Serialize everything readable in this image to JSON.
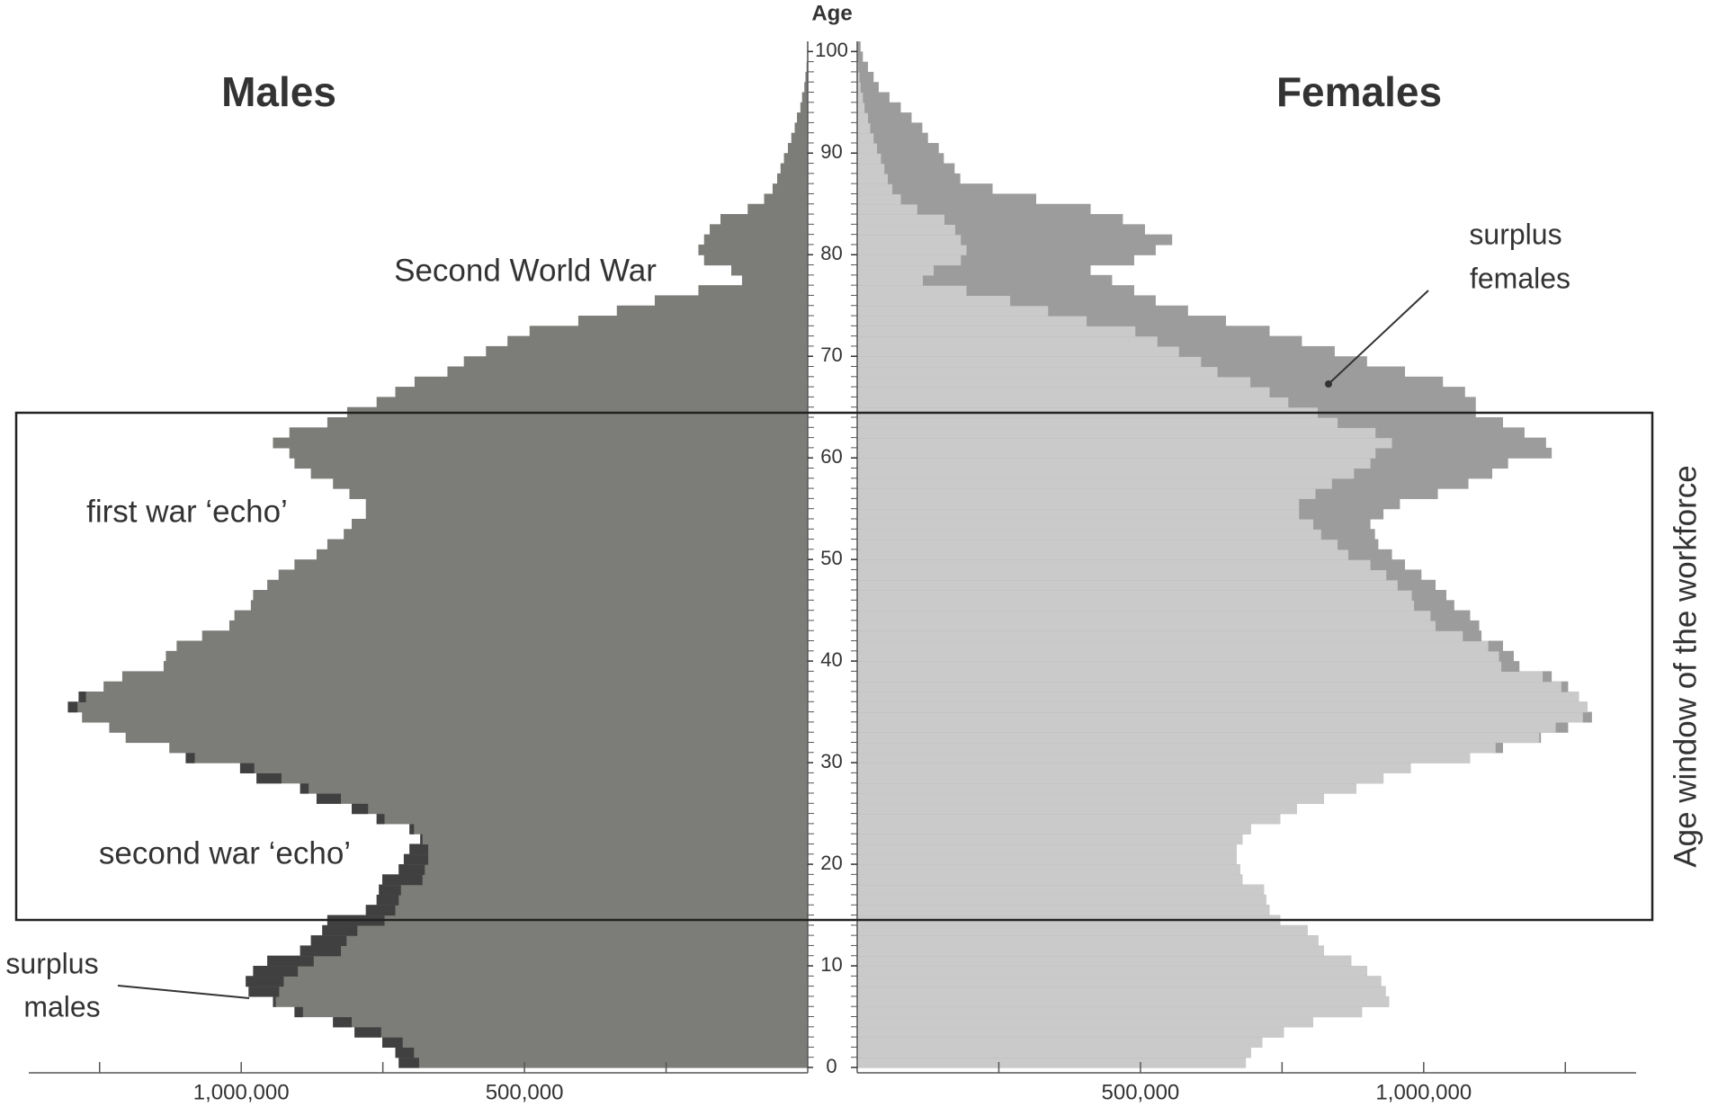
{
  "chart_data": {
    "type": "pyramid",
    "y_axis_title": "Age",
    "ages": [
      0,
      1,
      2,
      3,
      4,
      5,
      6,
      7,
      8,
      9,
      10,
      11,
      12,
      13,
      14,
      15,
      16,
      17,
      18,
      19,
      20,
      21,
      22,
      23,
      24,
      25,
      26,
      27,
      28,
      29,
      30,
      31,
      32,
      33,
      34,
      35,
      36,
      37,
      38,
      39,
      40,
      41,
      42,
      43,
      44,
      45,
      46,
      47,
      48,
      49,
      50,
      51,
      52,
      53,
      54,
      55,
      56,
      57,
      58,
      59,
      60,
      61,
      62,
      63,
      64,
      65,
      66,
      67,
      68,
      69,
      70,
      71,
      72,
      73,
      74,
      75,
      76,
      77,
      78,
      79,
      80,
      81,
      82,
      83,
      84,
      85,
      86,
      87,
      88,
      89,
      90,
      91,
      92,
      93,
      94,
      95,
      96,
      97,
      98,
      99,
      100
    ],
    "series": [
      {
        "name": "Males",
        "side": "left",
        "color": "#7c7c79",
        "surplus_color": "#404040",
        "values": [
          722000,
          728000,
          751000,
          800000,
          838000,
          906000,
          944000,
          987000,
          992000,
          979000,
          954000,
          896000,
          877000,
          857000,
          848000,
          780000,
          761000,
          757000,
          751000,
          722000,
          713000,
          703000,
          684000,
          703000,
          761000,
          805000,
          867000,
          896000,
          973000,
          1002000,
          1098000,
          1127000,
          1204000,
          1233000,
          1281000,
          1306000,
          1287000,
          1243000,
          1210000,
          1137000,
          1133000,
          1114000,
          1069000,
          1021000,
          1012000,
          983000,
          979000,
          954000,
          934000,
          906000,
          867000,
          848000,
          819000,
          805000,
          780000,
          780000,
          809000,
          838000,
          877000,
          906000,
          915000,
          944000,
          915000,
          848000,
          813000,
          761000,
          728000,
          694000,
          636000,
          607000,
          568000,
          530000,
          491000,
          405000,
          337000,
          270000,
          193000,
          116000,
          135000,
          183000,
          193000,
          183000,
          173000,
          154000,
          106000,
          77000,
          62000,
          54000,
          48000,
          42000,
          35000,
          29000,
          23000,
          19000,
          13000,
          10000,
          6000,
          4000,
          2000,
          1000,
          1000
        ]
      },
      {
        "name": "Females",
        "side": "right",
        "color": "#9c9c9c",
        "overlap_color": "#cacaca",
        "values": [
          686000,
          695000,
          715000,
          753000,
          805000,
          891000,
          939000,
          933000,
          925000,
          900000,
          872000,
          824000,
          814000,
          795000,
          747000,
          728000,
          722000,
          718000,
          680000,
          676000,
          670000,
          670000,
          680000,
          695000,
          747000,
          776000,
          824000,
          881000,
          929000,
          977000,
          1082000,
          1140000,
          1207000,
          1255000,
          1297000,
          1289000,
          1274000,
          1255000,
          1226000,
          1169000,
          1159000,
          1140000,
          1102000,
          1098000,
          1082000,
          1054000,
          1040000,
          1021000,
          996000,
          967000,
          944000,
          920000,
          914000,
          906000,
          929000,
          958000,
          1025000,
          1079000,
          1121000,
          1149000,
          1226000,
          1216000,
          1178000,
          1140000,
          1092000,
          1092000,
          1073000,
          1034000,
          967000,
          900000,
          843000,
          785000,
          728000,
          651000,
          584000,
          527000,
          489000,
          450000,
          412000,
          489000,
          527000,
          556000,
          508000,
          469000,
          412000,
          316000,
          239000,
          182000,
          172000,
          153000,
          144000,
          125000,
          115000,
          96000,
          77000,
          57000,
          38000,
          29000,
          19000,
          10000,
          6000
        ]
      }
    ],
    "xlim": [
      0,
      1375000
    ],
    "xticks": [
      {
        "value": 500000,
        "label": "500,000"
      },
      {
        "value": 1000000,
        "label": "1,000,000"
      }
    ],
    "minor_xticks": [
      250000,
      750000,
      1250000
    ],
    "ylim": [
      0,
      101
    ],
    "yticks": [
      0,
      10,
      20,
      30,
      40,
      50,
      60,
      70,
      80,
      90,
      100
    ],
    "annotations": [
      {
        "lines": [
          "Second World War"
        ]
      },
      {
        "lines": [
          "surplus",
          "females"
        ]
      },
      {
        "lines": [
          "first war ‘echo’"
        ]
      },
      {
        "lines": [
          "second war ‘echo’"
        ]
      },
      {
        "lines": [
          "surplus",
          "males"
        ]
      },
      {
        "lines": [
          "Age window of the workforce"
        ]
      }
    ]
  }
}
